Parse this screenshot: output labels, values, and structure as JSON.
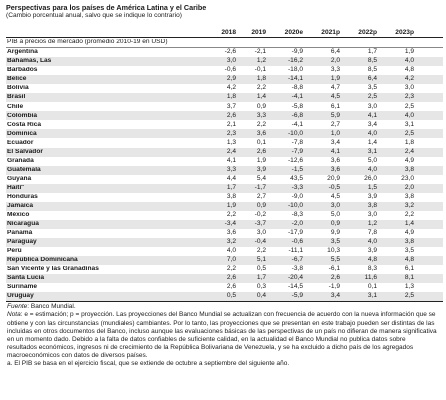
{
  "title": "Perspectivas para los países de América Latina y el Caribe",
  "subtitle": "(Cambio porcentual anual, salvo que se indique lo contrario)",
  "columns": [
    "2018",
    "2019",
    "2020e",
    "2021p",
    "2022p",
    "2023p"
  ],
  "section_label": "PIB a precios de mercado (promedio 2010-19 en USD)",
  "rows": [
    {
      "name": "Argentina",
      "sup": "",
      "values": [
        "-2,6",
        "-2,1",
        "-9,9",
        "6,4",
        "1,7",
        "1,9"
      ]
    },
    {
      "name": "Bahamas, Las",
      "sup": "",
      "values": [
        "3,0",
        "1,2",
        "-16,2",
        "2,0",
        "8,5",
        "4,0"
      ]
    },
    {
      "name": "Barbados",
      "sup": "",
      "values": [
        "-0,6",
        "-0,1",
        "-18,0",
        "3,3",
        "8,5",
        "4,8"
      ]
    },
    {
      "name": "Belice",
      "sup": "",
      "values": [
        "2,9",
        "1,8",
        "-14,1",
        "1,9",
        "6,4",
        "4,2"
      ]
    },
    {
      "name": "Bolivia",
      "sup": "",
      "values": [
        "4,2",
        "2,2",
        "-8,8",
        "4,7",
        "3,5",
        "3,0"
      ]
    },
    {
      "name": "Brasil",
      "sup": "",
      "values": [
        "1,8",
        "1,4",
        "-4,1",
        "4,5",
        "2,5",
        "2,3"
      ]
    },
    {
      "name": "Chile",
      "sup": "",
      "values": [
        "3,7",
        "0,9",
        "-5,8",
        "6,1",
        "3,0",
        "2,5"
      ]
    },
    {
      "name": "Colombia",
      "sup": "",
      "values": [
        "2,6",
        "3,3",
        "-6,8",
        "5,9",
        "4,1",
        "4,0"
      ]
    },
    {
      "name": "Costa Rica",
      "sup": "",
      "values": [
        "2,1",
        "2,2",
        "-4,1",
        "2,7",
        "3,4",
        "3,1"
      ]
    },
    {
      "name": "Dominica",
      "sup": "",
      "values": [
        "2,3",
        "3,6",
        "-10,0",
        "1,0",
        "4,0",
        "2,5"
      ]
    },
    {
      "name": "Ecuador",
      "sup": "",
      "values": [
        "1,3",
        "0,1",
        "-7,8",
        "3,4",
        "1,4",
        "1,8"
      ]
    },
    {
      "name": "El Salvador",
      "sup": "",
      "values": [
        "2,4",
        "2,6",
        "-7,9",
        "4,1",
        "3,1",
        "2,4"
      ]
    },
    {
      "name": "Granada",
      "sup": "",
      "values": [
        "4,1",
        "1,9",
        "-12,6",
        "3,6",
        "5,0",
        "4,9"
      ]
    },
    {
      "name": "Guatemala",
      "sup": "",
      "values": [
        "3,3",
        "3,9",
        "-1,5",
        "3,6",
        "4,0",
        "3,8"
      ]
    },
    {
      "name": "Guyana",
      "sup": "",
      "values": [
        "4,4",
        "5,4",
        "43,5",
        "20,9",
        "26,0",
        "23,0"
      ]
    },
    {
      "name": "Haití",
      "sup": "a",
      "values": [
        "1,7",
        "-1,7",
        "-3,3",
        "-0,5",
        "1,5",
        "2,0"
      ]
    },
    {
      "name": "Honduras",
      "sup": "",
      "values": [
        "3,8",
        "2,7",
        "-9,0",
        "4,5",
        "3,9",
        "3,8"
      ]
    },
    {
      "name": "Jamaica",
      "sup": "",
      "values": [
        "1,9",
        "0,9",
        "-10,0",
        "3,0",
        "3,8",
        "3,2"
      ]
    },
    {
      "name": "México",
      "sup": "",
      "values": [
        "2,2",
        "-0,2",
        "-8,3",
        "5,0",
        "3,0",
        "2,2"
      ]
    },
    {
      "name": "Nicaragua",
      "sup": "",
      "values": [
        "-3,4",
        "-3,7",
        "-2,0",
        "0,9",
        "1,2",
        "1,4"
      ]
    },
    {
      "name": "Panamá",
      "sup": "",
      "values": [
        "3,6",
        "3,0",
        "-17,9",
        "9,9",
        "7,8",
        "4,9"
      ]
    },
    {
      "name": "Paraguay",
      "sup": "",
      "values": [
        "3,2",
        "-0,4",
        "-0,6",
        "3,5",
        "4,0",
        "3,8"
      ]
    },
    {
      "name": "Perú",
      "sup": "",
      "values": [
        "4,0",
        "2,2",
        "-11,1",
        "10,3",
        "3,9",
        "3,5"
      ]
    },
    {
      "name": "República Dominicana",
      "sup": "",
      "values": [
        "7,0",
        "5,1",
        "-6,7",
        "5,5",
        "4,8",
        "4,8"
      ]
    },
    {
      "name": "San Vicente y las Granadinas",
      "sup": "",
      "values": [
        "2,2",
        "0,5",
        "-3,8",
        "-6,1",
        "8,3",
        "6,1"
      ]
    },
    {
      "name": "Santa Lucía",
      "sup": "",
      "values": [
        "2,6",
        "1,7",
        "-20,4",
        "2,6",
        "11,6",
        "8,1"
      ]
    },
    {
      "name": "Suriname",
      "sup": "",
      "values": [
        "2,6",
        "0,3",
        "-14,5",
        "-1,9",
        "0,1",
        "1,3"
      ]
    },
    {
      "name": "Uruguay",
      "sup": "",
      "values": [
        "0,5",
        "0,4",
        "-5,9",
        "3,4",
        "3,1",
        "2,5"
      ]
    }
  ],
  "notes": {
    "source_label": "Fuente",
    "source_text": ": Banco Mundial.",
    "nota_label": "Nota",
    "nota_text": ": e = estimación; p = proyección. Las proyecciones del Banco Mundial se actualizan con frecuencia de acuerdo con la nueva información que se obtiene y con las circunstancias (mundiales) cambiantes. Por lo tanto, las proyecciones que se presentan en este trabajo pueden ser distintas de las incluidas en otros documentos del Banco, incluso aunque las evaluaciones básicas de las perspectivas de un país no difieran de manera significativa en un momento dado. Debido a la falta de datos confiables de suficiente calidad, en la actualidad el Banco Mundial no publica datos sobre resultados económicos, ingresos ni de crecimiento de la República Bolivariana de Venezuela, y se ha excluido a dicho país de los agregados macroeconómicos con datos de diversos países.",
    "footnote_a": "a. El PIB se basa en el ejercicio fiscal, que se extiende de octubre a septiembre del siguiente año."
  }
}
